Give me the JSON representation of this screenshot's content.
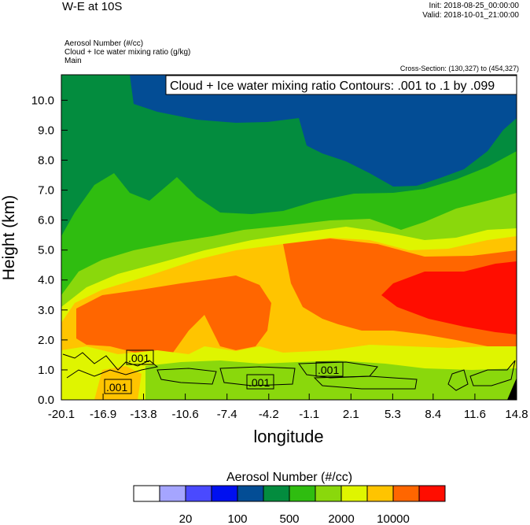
{
  "header": {
    "title": "W-E at 10S",
    "init": "Init: 2018-08-25_00:00:00",
    "valid": "Valid: 2018-10-01_21:00:00",
    "field_lines": [
      "Aerosol Number   (#/cc)",
      "Cloud + Ice water mixing ratio   (g/kg)",
      "Main"
    ],
    "cross_section": "Cross-Section: (130,327) to (454,327)"
  },
  "chart_data": {
    "type": "contour",
    "title": "W-E at 10S",
    "xlabel": "longitude",
    "ylabel": "Height (km)",
    "xticks": [
      "-20.1",
      "-16.9",
      "-13.8",
      "-10.6",
      "-7.4",
      "-4.2",
      "-1.1",
      "2.1",
      "5.3",
      "8.4",
      "11.6",
      "14.8"
    ],
    "yticks": [
      "0.0",
      "1.0",
      "2.0",
      "3.0",
      "4.0",
      "5.0",
      "6.0",
      "7.0",
      "8.0",
      "9.0",
      "10.0"
    ],
    "xlim": [
      -20.1,
      14.8
    ],
    "ylim": [
      0,
      10.85
    ],
    "filled_field": "Aerosol Number (#/cc)",
    "contour_info": "Cloud + Ice water mixing ratio Contours: .001 to .1 by .099",
    "contour_labels": [
      ".001",
      ".001",
      ".001",
      ".001"
    ],
    "colorbar": {
      "title": "Aerosol Number  (#/cc)",
      "labels": [
        "20",
        "100",
        "500",
        "2000",
        "10000"
      ],
      "colors": [
        "#ffffff",
        "#a5a5ff",
        "#4a4aff",
        "#0010f0",
        "#034d95",
        "#038c3e",
        "#2fbd10",
        "#8ad80c",
        "#dff500",
        "#ffc400",
        "#ff6600",
        "#ff0d00"
      ]
    }
  }
}
